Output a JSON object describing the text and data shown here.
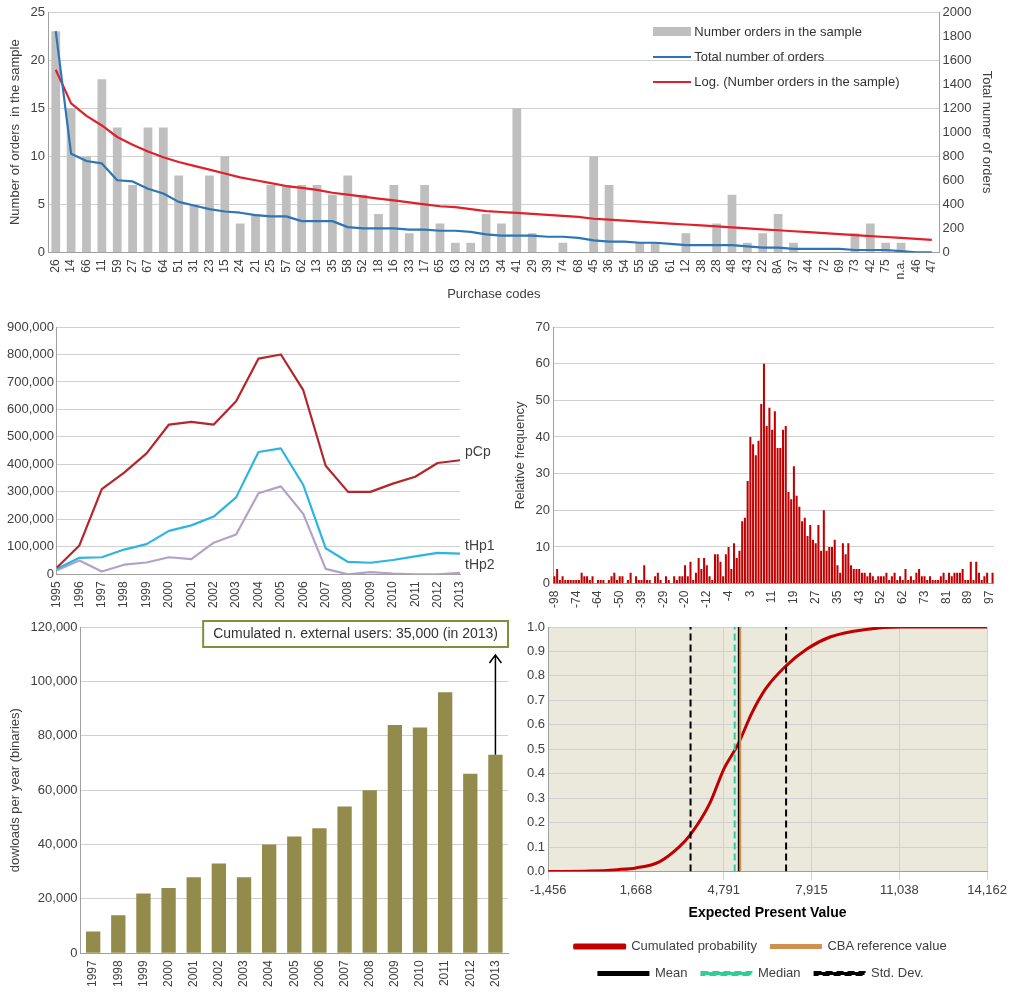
{
  "chart_data": [
    {
      "type": "bar",
      "xlabel": "Purchase codes",
      "ylabel": "Number of orders  in the sample",
      "y2label": "Total numer of orders",
      "categories": [
        "26",
        "14",
        "66",
        "11",
        "59",
        "27",
        "67",
        "64",
        "51",
        "31",
        "23",
        "15",
        "24",
        "21",
        "25",
        "57",
        "62",
        "13",
        "35",
        "58",
        "52",
        "18",
        "16",
        "33",
        "17",
        "65",
        "63",
        "32",
        "53",
        "34",
        "41",
        "29",
        "39",
        "74",
        "68",
        "45",
        "36",
        "54",
        "55",
        "56",
        "61",
        "12",
        "38",
        "28",
        "48",
        "43",
        "22",
        "8A",
        "37",
        "44",
        "72",
        "69",
        "73",
        "42",
        "75",
        "n.a.",
        "46",
        "47"
      ],
      "series": [
        {
          "name": "Number orders in the sample",
          "type": "bar",
          "color": "#bfbfbf",
          "values": [
            23,
            15,
            10,
            18,
            13,
            7,
            13,
            13,
            8,
            5,
            8,
            10,
            3,
            4,
            7,
            7,
            7,
            7,
            6,
            8,
            6,
            4,
            7,
            2,
            7,
            3,
            1,
            1,
            4,
            3,
            15,
            2,
            0,
            1,
            0,
            10,
            7,
            0,
            1,
            1,
            0,
            2,
            0,
            3,
            6,
            1,
            2,
            4,
            1,
            0,
            0,
            0,
            2,
            3,
            1,
            1,
            0,
            0
          ]
        },
        {
          "name": "Total number of orders",
          "type": "line",
          "axis": "y2",
          "color": "#2e75b6",
          "values": [
            1840,
            820,
            760,
            740,
            600,
            590,
            530,
            490,
            420,
            390,
            360,
            340,
            330,
            310,
            300,
            300,
            260,
            260,
            260,
            210,
            200,
            200,
            200,
            190,
            190,
            180,
            180,
            170,
            150,
            140,
            140,
            140,
            130,
            130,
            120,
            100,
            90,
            90,
            80,
            80,
            70,
            60,
            60,
            60,
            60,
            50,
            40,
            40,
            30,
            30,
            30,
            30,
            20,
            20,
            20,
            10,
            0,
            0
          ]
        },
        {
          "name": "Log. (Number orders in the sample)",
          "type": "line",
          "color": "#e0202a",
          "values": [
            19,
            15.5,
            14.2,
            13.2,
            12,
            11.2,
            10.5,
            9.9,
            9.4,
            9,
            8.6,
            8.2,
            7.8,
            7.5,
            7.2,
            6.9,
            6.7,
            6.5,
            6.2,
            6,
            5.8,
            5.6,
            5.4,
            5.2,
            5,
            4.8,
            4.7,
            4.5,
            4.3,
            4.2,
            4.1,
            4.0,
            3.9,
            3.8,
            3.7,
            3.5,
            3.4,
            3.3,
            3.2,
            3.1,
            3.0,
            2.9,
            2.8,
            2.7,
            2.6,
            2.5,
            2.4,
            2.3,
            2.2,
            2.1,
            2.0,
            1.9,
            1.8,
            1.7,
            1.6,
            1.5,
            1.4,
            1.3
          ]
        }
      ],
      "ylim": [
        0,
        25
      ],
      "yticks": [
        0,
        5,
        10,
        15,
        20,
        25
      ],
      "y2lim": [
        0,
        2000
      ],
      "y2ticks": [
        0,
        200,
        400,
        600,
        800,
        1000,
        1200,
        1400,
        1600,
        1800,
        2000
      ],
      "grid": "y",
      "legend": "top right"
    },
    {
      "type": "line",
      "categories": [
        "1995",
        "1996",
        "1997",
        "1998",
        "1999",
        "2000",
        "2001",
        "2002",
        "2003",
        "2004",
        "2005",
        "2006",
        "2007",
        "2008",
        "2009",
        "2010",
        "2011",
        "2012",
        "2013"
      ],
      "series": [
        {
          "name": "pCp",
          "color": "#b5262b",
          "values": [
            25000,
            105000,
            310000,
            370000,
            440000,
            545000,
            555000,
            545000,
            630000,
            785000,
            800000,
            670000,
            395000,
            300000,
            300000,
            330000,
            355000,
            405000,
            415000
          ]
        },
        {
          "name": "tHp1",
          "color": "#2cb5e0",
          "values": [
            20000,
            60000,
            62000,
            90000,
            110000,
            158000,
            178000,
            210000,
            280000,
            445000,
            458000,
            325000,
            95000,
            45000,
            42000,
            52000,
            65000,
            78000,
            75000
          ]
        },
        {
          "name": "tHp2",
          "color": "#b3a2c7",
          "values": [
            15000,
            50000,
            10000,
            35000,
            43000,
            62000,
            55000,
            115000,
            145000,
            295000,
            320000,
            220000,
            20000,
            0,
            8000,
            3000,
            0,
            0,
            5000
          ]
        }
      ],
      "ylim": [
        0,
        900000
      ],
      "yticks": [
        0,
        {
          "value": 100000,
          "label": "100,000"
        },
        {
          "value": 200000,
          "label": "200,000"
        },
        {
          "value": 300000,
          "label": "300,000"
        },
        {
          "value": 400000,
          "label": "400,000"
        },
        {
          "value": 500000,
          "label": "500,000"
        },
        {
          "value": 600000,
          "label": "600,000"
        },
        {
          "value": 700000,
          "label": "700,000"
        },
        {
          "value": 800000,
          "label": "800,000"
        },
        {
          "value": 900000,
          "label": "900,000"
        }
      ],
      "grid": "y"
    },
    {
      "type": "bar",
      "ylabel": "Relative frequency",
      "color": "#c00000",
      "categories": [
        "-98",
        null,
        null,
        null,
        null,
        null,
        null,
        null,
        "-74",
        null,
        null,
        null,
        null,
        null,
        null,
        null,
        "-64",
        null,
        null,
        null,
        null,
        null,
        null,
        null,
        "-50",
        null,
        null,
        null,
        null,
        null,
        null,
        null,
        "-39",
        null,
        null,
        null,
        null,
        null,
        null,
        null,
        "-29",
        null,
        null,
        null,
        null,
        null,
        null,
        null,
        "-20",
        null,
        null,
        null,
        null,
        null,
        null,
        null,
        "-12",
        null,
        null,
        null,
        null,
        null,
        null,
        null,
        "-4",
        null,
        null,
        null,
        null,
        null,
        null,
        null,
        "3",
        null,
        null,
        null,
        null,
        null,
        null,
        null,
        "11",
        null,
        null,
        null,
        null,
        null,
        null,
        null,
        "19",
        null,
        null,
        null,
        null,
        null,
        null,
        null,
        "27",
        null,
        null,
        null,
        null,
        null,
        null,
        null,
        "35",
        null,
        null,
        null,
        null,
        null,
        null,
        null,
        "43",
        null,
        null,
        null,
        null,
        null,
        null,
        null,
        "52",
        null,
        null,
        null,
        null,
        null,
        null,
        null,
        "62",
        null,
        null,
        null,
        null,
        null,
        null,
        null,
        "73",
        null,
        null,
        null,
        null,
        null,
        null,
        null,
        "81",
        null,
        null,
        null,
        null,
        null,
        null,
        null,
        "89",
        null,
        null,
        null,
        null,
        null,
        null,
        null,
        "97",
        null
      ],
      "values": [
        2,
        4,
        1,
        2,
        1,
        1,
        1,
        1,
        1,
        1,
        3,
        2,
        2,
        1,
        2,
        0,
        1,
        1,
        1,
        0,
        1,
        2,
        3,
        1,
        2,
        2,
        0,
        1,
        3,
        0,
        2,
        1,
        1,
        5,
        1,
        1,
        0,
        2,
        3,
        1,
        0,
        2,
        1,
        0,
        2,
        1,
        2,
        2,
        5,
        2,
        6,
        1,
        3,
        7,
        4,
        7,
        5,
        2,
        1,
        8,
        8,
        6,
        2,
        8,
        10,
        4,
        11,
        7,
        9,
        17,
        18,
        28,
        40,
        38,
        35,
        39,
        49,
        60,
        43,
        48,
        42,
        47,
        37,
        37,
        42,
        43,
        25,
        23,
        32,
        24,
        21,
        17,
        18,
        13,
        16,
        12,
        11,
        16,
        9,
        20,
        9,
        10,
        10,
        12,
        5,
        3,
        11,
        8,
        11,
        5,
        4,
        4,
        4,
        3,
        3,
        2,
        3,
        2,
        1,
        2,
        2,
        2,
        3,
        1,
        2,
        3,
        1,
        2,
        1,
        4,
        1,
        2,
        1,
        3,
        4,
        2,
        2,
        1,
        2,
        1,
        1,
        1,
        2,
        3,
        1,
        3,
        2,
        3,
        3,
        3,
        4,
        1,
        1,
        6,
        1,
        6,
        3,
        1,
        2,
        3,
        0,
        3
      ],
      "ylim": [
        0,
        70
      ],
      "yticks": [
        0,
        10,
        20,
        30,
        40,
        50,
        60,
        70
      ],
      "grid": "y"
    },
    {
      "type": "bar",
      "ylabel": "dowloads per year (binaries)",
      "color": "#938b4b",
      "categories": [
        "1997",
        "1998",
        "1999",
        "2000",
        "2001",
        "2002",
        "2003",
        "2004",
        "2005",
        "2006",
        "2007",
        "2008",
        "2009",
        "2010",
        "2011",
        "2012",
        "2013"
      ],
      "values": [
        8000,
        14000,
        22000,
        24000,
        28000,
        33000,
        28000,
        40000,
        43000,
        46000,
        54000,
        60000,
        84000,
        83000,
        96000,
        66000,
        73000
      ],
      "ylim": [
        0,
        120000
      ],
      "yticks": [
        0,
        {
          "value": 20000,
          "label": "20,000"
        },
        {
          "value": 40000,
          "label": "40,000"
        },
        {
          "value": 60000,
          "label": "60,000"
        },
        {
          "value": 80000,
          "label": "80,000"
        },
        {
          "value": 100000,
          "label": "100,000"
        },
        {
          "value": 120000,
          "label": "120,000"
        }
      ],
      "grid": "y",
      "annotations": [
        {
          "text": "Cumulated n. external users: 35,000 (in 2013)",
          "x": "2013",
          "y": 73000
        }
      ]
    },
    {
      "type": "line",
      "xlabel": "Expected Present Value",
      "series": [
        {
          "name": "Cumulated probability",
          "color": "#c00000",
          "x": [
            -1456,
            0,
            1000,
            1668,
            2500,
            3200,
            3600,
            4300,
            4800,
            5300,
            5800,
            6300,
            7000,
            7750,
            8600,
            9850,
            11100,
            14162
          ],
          "values": [
            0,
            0.002,
            0.008,
            0.015,
            0.04,
            0.1,
            0.15,
            0.28,
            0.42,
            0.52,
            0.65,
            0.75,
            0.84,
            0.91,
            0.96,
            0.99,
            1.0,
            1.0
          ]
        }
      ],
      "ref_lines": [
        {
          "axis": "x",
          "value": 5380,
          "label": "CBA reference value",
          "color": "#d09050",
          "line_style": "solid"
        },
        {
          "axis": "x",
          "value": 5330,
          "label": "Mean",
          "color": "#000000",
          "line_style": "solid"
        },
        {
          "axis": "x",
          "value": 5182,
          "label": "Median",
          "color": "#33cc99",
          "line_style": "dashed"
        },
        {
          "axis": "x",
          "value": 3612,
          "label": "Std. Dev.",
          "color": "#000000",
          "line_style": "dashed"
        },
        {
          "axis": "x",
          "value": 7011,
          "color": "#000000",
          "line_style": "dashed"
        }
      ],
      "xlim": [
        -1456,
        14162
      ],
      "xticks": [
        {
          "value": -1456,
          "label": "-1,456"
        },
        {
          "value": 1668,
          "label": "1,668"
        },
        {
          "value": 4791,
          "label": "4,791"
        },
        {
          "value": 7915,
          "label": "7,915"
        },
        {
          "value": 11038,
          "label": "11,038"
        },
        {
          "value": 14162,
          "label": "14,162"
        }
      ],
      "ylim": [
        0,
        1
      ],
      "yticks": [
        {
          "value": 0,
          "label": "0.0"
        },
        0.1,
        0.2,
        0.3,
        0.4,
        0.5,
        0.6,
        0.7,
        0.8,
        0.9,
        {
          "value": 1,
          "label": "1.0"
        }
      ],
      "grid": true,
      "legend": "bottom"
    }
  ]
}
